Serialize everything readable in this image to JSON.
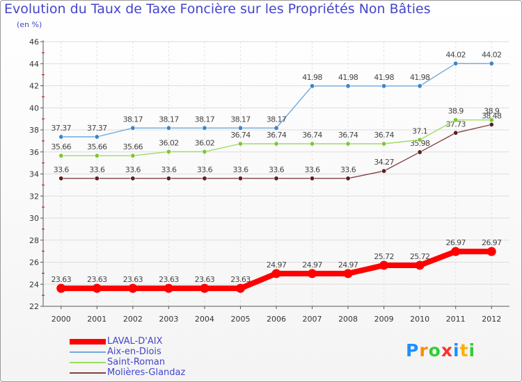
{
  "chart_data": {
    "type": "line",
    "title": "Evolution du Taux de Taxe Foncière sur les Propriétés Non Bâties",
    "subtitle": "(en %)",
    "x": [
      "2000",
      "2001",
      "2002",
      "2003",
      "2004",
      "2005",
      "2006",
      "2007",
      "2008",
      "2009",
      "2010",
      "2011",
      "2012"
    ],
    "ylim": [
      22,
      46
    ],
    "yticks": [
      22,
      24,
      26,
      28,
      30,
      32,
      34,
      36,
      38,
      40,
      42,
      44,
      46
    ],
    "grid": true,
    "legend_position": "bottom-left",
    "series": [
      {
        "name": "LAVAL-D'AIX",
        "color": "#ff0000",
        "values": [
          23.63,
          23.63,
          23.63,
          23.63,
          23.63,
          23.63,
          24.97,
          24.97,
          24.97,
          25.72,
          25.72,
          26.97,
          26.97
        ],
        "labels": [
          "23.63",
          "23.63",
          "23.63",
          "23.63",
          "23.63",
          "23.63",
          "24.97",
          "24.97",
          "24.97",
          "25.72",
          "25.72",
          "26.97",
          "26.97"
        ]
      },
      {
        "name": "Aix-en-Diois",
        "color": "#6fa8dc",
        "point_color": "#3d85c6",
        "values": [
          37.37,
          37.37,
          38.17,
          38.17,
          38.17,
          38.17,
          38.17,
          41.98,
          41.98,
          41.98,
          41.98,
          44.02,
          44.02
        ],
        "labels": [
          "37.37",
          "37.37",
          "38.17",
          "38.17",
          "38.17",
          "38.17",
          "38.17",
          "41.98",
          "41.98",
          "41.98",
          "41.98",
          "44.02",
          "44.02"
        ]
      },
      {
        "name": "Saint-Roman",
        "color": "#9fdb5f",
        "point_color": "#7cc734",
        "values": [
          35.66,
          35.66,
          35.66,
          36.02,
          36.02,
          36.74,
          36.74,
          36.74,
          36.74,
          36.74,
          37.1,
          38.9,
          38.9
        ],
        "labels": [
          "35.66",
          "35.66",
          "35.66",
          "36.02",
          "36.02",
          "36.74",
          "36.74",
          "36.74",
          "36.74",
          "36.74",
          "37.1",
          "38.9",
          "38.9"
        ]
      },
      {
        "name": "Molières-Glandaz",
        "color": "#804040",
        "point_color": "#5c1f1f",
        "values": [
          33.6,
          33.6,
          33.6,
          33.6,
          33.6,
          33.6,
          33.6,
          33.6,
          33.6,
          34.27,
          35.98,
          37.73,
          38.48
        ],
        "labels": [
          "33.6",
          "33.6",
          "33.6",
          "33.6",
          "33.6",
          "33.6",
          "33.6",
          "33.6",
          "33.6",
          "34.27",
          "35.98",
          "37.73",
          "38.48"
        ]
      }
    ]
  },
  "logo": {
    "letters": [
      "P",
      "r",
      "o",
      "x",
      "i",
      "t",
      "i"
    ],
    "colors": [
      "#1e90ff",
      "#ff8c00",
      "#32cd32",
      "#ff3030",
      "#1e90ff",
      "#ffb000",
      "#32cd32"
    ]
  }
}
